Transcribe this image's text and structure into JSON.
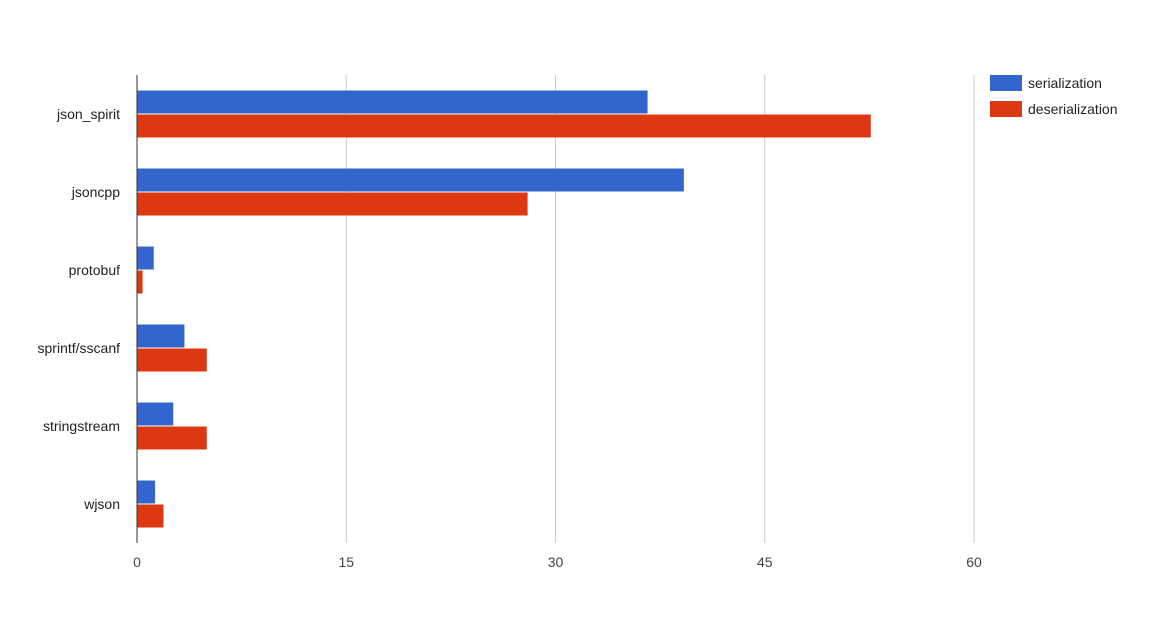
{
  "chart_data": {
    "type": "bar",
    "orientation": "horizontal",
    "categories": [
      "json_spirit",
      "jsoncpp",
      "protobuf",
      "sprintf/sscanf",
      "stringstream",
      "wjson"
    ],
    "series": [
      {
        "name": "serialization",
        "color": "#3366cc",
        "values": [
          36.6,
          39.2,
          1.2,
          3.4,
          2.6,
          1.3
        ]
      },
      {
        "name": "deserialization",
        "color": "#dc3912",
        "values": [
          52.6,
          28.0,
          0.4,
          5.0,
          5.0,
          1.9
        ]
      }
    ],
    "xticks": [
      "0",
      "15",
      "30",
      "45",
      "60"
    ],
    "xlim": [
      0,
      60
    ],
    "grid": true,
    "legend_position": "top-right",
    "title": "",
    "xlabel": "",
    "ylabel": ""
  }
}
